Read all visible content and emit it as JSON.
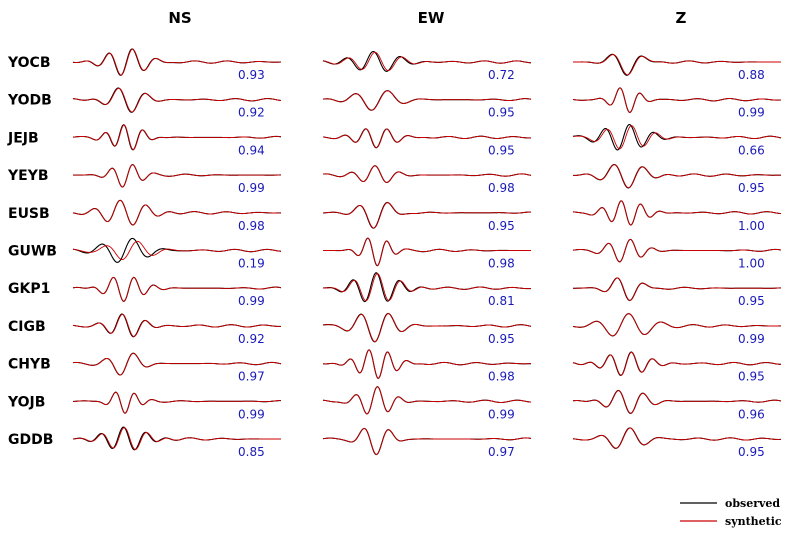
{
  "chart_data": {
    "type": "line",
    "columns": [
      "NS",
      "EW",
      "Z"
    ],
    "stations": [
      "YOCB",
      "YODB",
      "JEJB",
      "YEYB",
      "EUSB",
      "GUWB",
      "GKP1",
      "CIGB",
      "CHYB",
      "YOJB",
      "GDDB"
    ],
    "correlations": {
      "NS": [
        "0.93",
        "0.92",
        "0.94",
        "0.99",
        "0.98",
        "0.19",
        "0.99",
        "0.92",
        "0.97",
        "0.99",
        "0.85"
      ],
      "EW": [
        "0.72",
        "0.95",
        "0.95",
        "0.98",
        "0.95",
        "0.98",
        "0.81",
        "0.95",
        "0.98",
        "0.99",
        "0.97"
      ],
      "Z": [
        "0.88",
        "0.99",
        "0.66",
        "0.95",
        "1.00",
        "1.00",
        "0.95",
        "0.99",
        "0.95",
        "0.96",
        "0.95"
      ]
    },
    "legend": [
      {
        "label": "observed",
        "color": "#000000"
      },
      {
        "label": "synthetic",
        "color": "#cc0000"
      }
    ],
    "legend_position": "bottom-right",
    "observed_color": "#000000",
    "synthetic_color": "#cc0000",
    "value_color": "#1a1ab8"
  }
}
